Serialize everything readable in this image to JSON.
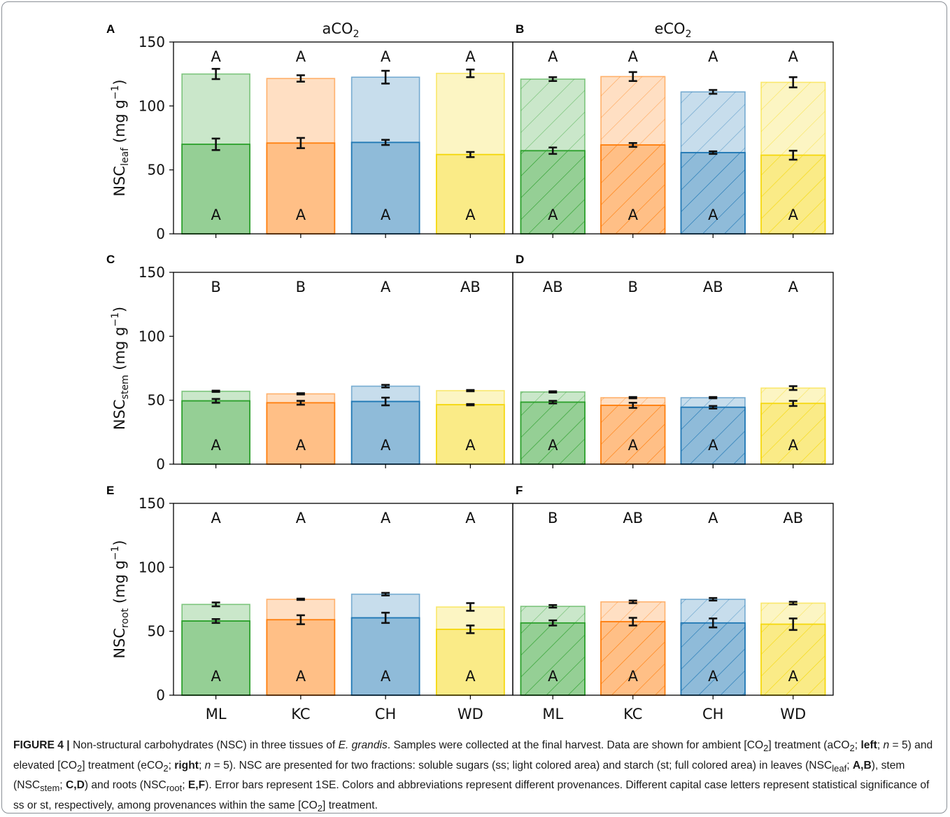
{
  "colors": {
    "ML": "#2ca02c",
    "KC": "#ff7f0e",
    "CH": "#1f77b4",
    "WD": "#f5d80f"
  },
  "chart_data": {
    "type": "bar",
    "stacked": true,
    "categories": [
      "ML",
      "KC",
      "CH",
      "WD"
    ],
    "ylim": [
      0,
      150
    ],
    "yticks": [
      0,
      50,
      100,
      150
    ],
    "grid": false,
    "rows": [
      {
        "ylabel_main": "NSC",
        "ylabel_sub": "leaf",
        "ylabel_unit": " (mg g",
        "ylabel_exp": "−1",
        "ylabel_close": ")"
      },
      {
        "ylabel_main": "NSC",
        "ylabel_sub": "stem",
        "ylabel_unit": " (mg g",
        "ylabel_exp": "−1",
        "ylabel_close": ")"
      },
      {
        "ylabel_main": "NSC",
        "ylabel_sub": "root",
        "ylabel_unit": " (mg g",
        "ylabel_exp": "−1",
        "ylabel_close": ")"
      }
    ],
    "column_titles": [
      {
        "main": "aCO",
        "sub": "2"
      },
      {
        "main": "eCO",
        "sub": "2"
      }
    ],
    "panels": [
      {
        "label": "A",
        "row": 0,
        "col": 0,
        "hatched": false,
        "starch": [
          70,
          71,
          71.5,
          62
        ],
        "starch_se": [
          4.5,
          4,
          2,
          2
        ],
        "total": [
          125,
          121.5,
          122.5,
          125.5
        ],
        "total_se": [
          4,
          2.5,
          5,
          3
        ],
        "ss_letters": [
          "A",
          "A",
          "A",
          "A"
        ],
        "st_letters": [
          "A",
          "A",
          "A",
          "A"
        ]
      },
      {
        "label": "B",
        "row": 0,
        "col": 1,
        "hatched": true,
        "starch": [
          65,
          69.5,
          63.5,
          61.5
        ],
        "starch_se": [
          2.5,
          1.5,
          1,
          3.5
        ],
        "total": [
          121,
          123,
          111,
          118.5
        ],
        "total_se": [
          1.5,
          3.5,
          1.5,
          4
        ],
        "ss_letters": [
          "A",
          "A",
          "A",
          "A"
        ],
        "st_letters": [
          "A",
          "A",
          "A",
          "A"
        ]
      },
      {
        "label": "C",
        "row": 1,
        "col": 0,
        "hatched": false,
        "starch": [
          49.5,
          48,
          49,
          46.5
        ],
        "starch_se": [
          1.5,
          1.5,
          3,
          0.5
        ],
        "total": [
          57,
          55,
          61,
          57.5
        ],
        "total_se": [
          0.5,
          0.5,
          1,
          0.5
        ],
        "ss_letters": [
          "B",
          "B",
          "A",
          "AB"
        ],
        "st_letters": [
          "A",
          "A",
          "A",
          "A"
        ]
      },
      {
        "label": "D",
        "row": 1,
        "col": 1,
        "hatched": true,
        "starch": [
          48.5,
          46,
          44.5,
          47.5
        ],
        "starch_se": [
          1,
          2,
          1,
          2
        ],
        "total": [
          56.5,
          52,
          52,
          59.5
        ],
        "total_se": [
          0.5,
          0.5,
          0.5,
          1.5
        ],
        "ss_letters": [
          "AB",
          "B",
          "AB",
          "A"
        ],
        "st_letters": [
          "A",
          "A",
          "A",
          "A"
        ]
      },
      {
        "label": "E",
        "row": 2,
        "col": 0,
        "hatched": false,
        "starch": [
          58,
          59,
          60.5,
          51.5
        ],
        "starch_se": [
          1.5,
          3.5,
          4,
          3
        ],
        "total": [
          71,
          75,
          79,
          69
        ],
        "total_se": [
          1.5,
          0.5,
          1,
          3
        ],
        "ss_letters": [
          "A",
          "A",
          "A",
          "A"
        ],
        "st_letters": [
          "A",
          "A",
          "A",
          "A"
        ]
      },
      {
        "label": "F",
        "row": 2,
        "col": 1,
        "hatched": true,
        "starch": [
          56.5,
          57.5,
          56.5,
          55.5
        ],
        "starch_se": [
          2,
          3,
          3.5,
          4.5
        ],
        "total": [
          69.5,
          73,
          75,
          72
        ],
        "total_se": [
          1,
          1,
          1,
          1
        ],
        "ss_letters": [
          "B",
          "AB",
          "A",
          "AB"
        ],
        "st_letters": [
          "A",
          "A",
          "A",
          "A"
        ]
      }
    ]
  },
  "caption": {
    "fig_label": "FIGURE 4 |",
    "t1": " Non-structural carbohydrates (NSC) in three tissues of ",
    "t1_italic": "E. grandis",
    "t2": ". Samples were collected at the final harvest. Data are shown for ambient [CO",
    "t2_sub": "2",
    "t3": "] treatment (aCO",
    "t3_sub": "2",
    "t4": "; ",
    "t4_bold": "left",
    "t5": "; ",
    "t5_italic": "n",
    "t6": " = 5) and elevated [CO",
    "t6_sub": "2",
    "t7": "] treatment (eCO",
    "t7_sub": "2",
    "t8": "; ",
    "t8_bold": "right",
    "t9": "; ",
    "t9_italic": "n",
    "t10": " = 5). NSC are presented for two fractions: soluble sugars (ss; light colored area) and starch (st; full colored area) in leaves (NSC",
    "t10_sub": "leaf",
    "t11": "; ",
    "t11_bold": "A,B",
    "t12": "), stem (NSC",
    "t12_sub": "stem",
    "t13": "; ",
    "t13_bold": "C,D",
    "t14": ") and roots (NSC",
    "t14_sub": "root",
    "t15": "; ",
    "t15_bold": "E,F",
    "t16": "). Error bars represent 1SE. Colors and abbreviations represent different provenances. Different capital case letters represent statistical significance of ss or st, respectively, among provenances within the same [CO",
    "t16_sub": "2",
    "t17": "] treatment."
  }
}
